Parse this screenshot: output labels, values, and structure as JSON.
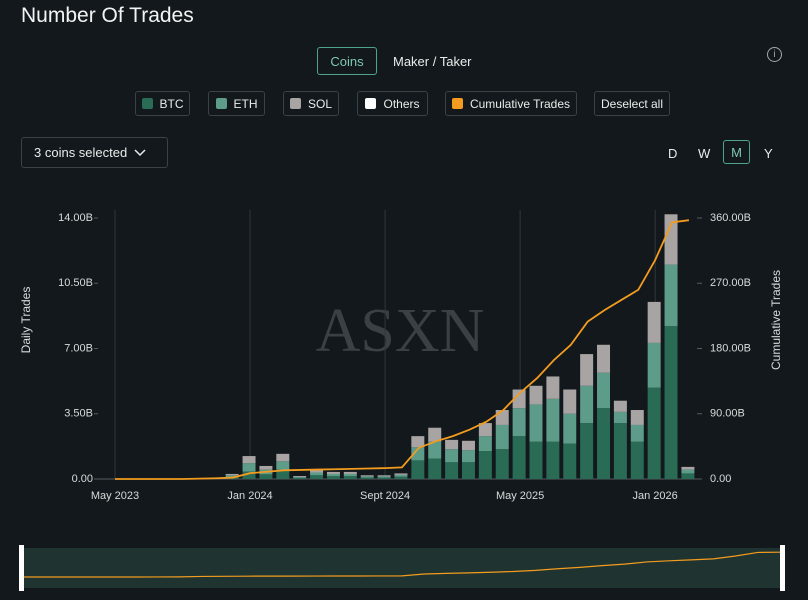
{
  "chart_data": {
    "type": "stacked_bar_line",
    "title": "Number Of Trades",
    "ylabel": "Daily Trades",
    "y2label": "Cumulative Trades",
    "watermark": "ASXN",
    "x": [
      "2023-05",
      "2023-06",
      "2023-07",
      "2023-08",
      "2023-09",
      "2023-10",
      "2023-11",
      "2023-12",
      "2024-01",
      "2024-02",
      "2024-03",
      "2024-04",
      "2024-05",
      "2024-06",
      "2024-07",
      "2024-08",
      "2024-09",
      "2024-10",
      "2024-11",
      "2024-12",
      "2025-01",
      "2025-02",
      "2025-03",
      "2025-04",
      "2025-05",
      "2025-06",
      "2025-07",
      "2025-08",
      "2025-09",
      "2025-10",
      "2025-11",
      "2025-12",
      "2026-01",
      "2026-02",
      "2026-03"
    ],
    "xticks": [
      {
        "value": "2023-05",
        "label": "May 2023"
      },
      {
        "value": "2024-01",
        "label": "Jan 2024"
      },
      {
        "value": "2024-09",
        "label": "Sept 2024"
      },
      {
        "value": "2025-05",
        "label": "May 2025"
      },
      {
        "value": "2026-01",
        "label": "Jan 2026"
      }
    ],
    "ylim": [
      0,
      14
    ],
    "yticks": [
      {
        "value": 0,
        "label": "0.00"
      },
      {
        "value": 3.5,
        "label": "3.50B"
      },
      {
        "value": 7,
        "label": "7.00B"
      },
      {
        "value": 10.5,
        "label": "10.50B"
      },
      {
        "value": 14,
        "label": "14.00B"
      }
    ],
    "y2lim": [
      0,
      360
    ],
    "y2ticks": [
      {
        "value": 0,
        "label": "0.00"
      },
      {
        "value": 90,
        "label": "90.00B"
      },
      {
        "value": 180,
        "label": "180.00B"
      },
      {
        "value": 270,
        "label": "270.00B"
      },
      {
        "value": 360,
        "label": "360.00B"
      }
    ],
    "grid": true,
    "series": [
      {
        "name": "BTC",
        "color": "#2a6b55",
        "kind": "bar",
        "values": [
          0,
          0,
          0,
          0,
          0,
          0,
          0,
          0.1,
          0.4,
          0.25,
          0.5,
          0.06,
          0.2,
          0.15,
          0.15,
          0.08,
          0.08,
          0.12,
          1.0,
          1.1,
          0.9,
          0.9,
          1.5,
          1.6,
          2.3,
          2.0,
          2.0,
          1.9,
          3.0,
          3.8,
          3.0,
          2.0,
          4.9,
          8.2,
          0.3
        ]
      },
      {
        "name": "ETH",
        "color": "#5e9c8a",
        "kind": "bar",
        "values": [
          0,
          0,
          0,
          0,
          0,
          0,
          0,
          0.1,
          0.45,
          0.25,
          0.45,
          0.05,
          0.15,
          0.12,
          0.12,
          0.06,
          0.06,
          0.1,
          0.7,
          0.9,
          0.7,
          0.65,
          0.8,
          1.3,
          1.5,
          2.0,
          2.3,
          1.6,
          2.0,
          1.9,
          0.6,
          0.9,
          2.4,
          3.3,
          0.2
        ]
      },
      {
        "name": "SOL",
        "color": "#a8a4a4",
        "kind": "bar",
        "values": [
          0,
          0,
          0,
          0,
          0,
          0,
          0,
          0.07,
          0.38,
          0.2,
          0.4,
          0.05,
          0.13,
          0.11,
          0.11,
          0.06,
          0.06,
          0.08,
          0.6,
          0.75,
          0.5,
          0.5,
          0.7,
          0.8,
          1.0,
          1.0,
          1.2,
          1.3,
          1.7,
          1.5,
          0.6,
          0.8,
          2.2,
          2.7,
          0.15
        ]
      },
      {
        "name": "Cumulative Trades",
        "color": "#f39c1f",
        "kind": "line",
        "axis": "y2",
        "values": [
          0,
          0,
          0,
          0,
          0,
          0.5,
          1,
          2,
          8,
          10,
          12,
          12.5,
          13,
          13.5,
          14,
          14.5,
          15,
          16,
          43,
          52,
          59,
          68,
          79,
          95,
          119,
          139,
          164,
          185,
          217,
          233,
          247,
          261,
          302,
          354,
          357
        ]
      }
    ],
    "extra_legend": [
      {
        "name": "Others",
        "color": "#ffffff"
      }
    ]
  },
  "ui": {
    "tabs": [
      "Coins",
      "Maker / Taker"
    ],
    "deselect": "Deselect all",
    "dropdown": "3 coins selected",
    "periods": [
      "D",
      "W",
      "M",
      "Y"
    ],
    "info": "i"
  }
}
